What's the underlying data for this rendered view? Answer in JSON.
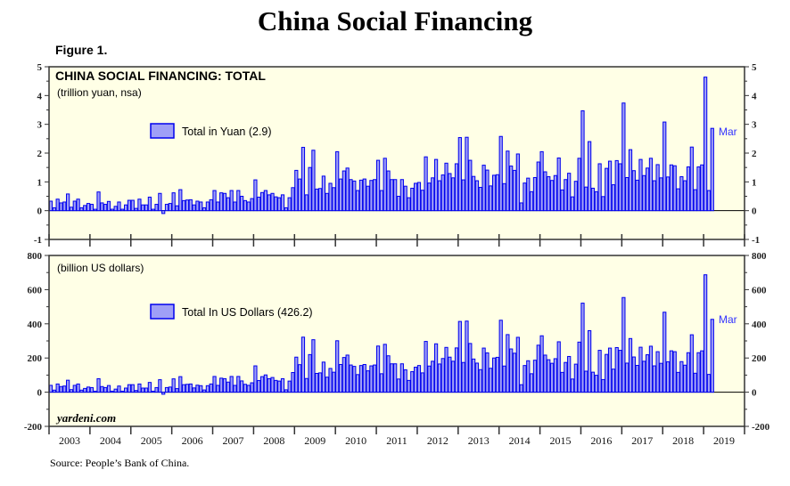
{
  "title": "China Social Financing",
  "figure_label": "Figure 1.",
  "source": "Source: People’s Bank of China.",
  "watermark": "yardeni.com",
  "colors": {
    "bar_fill": "#9f9ff7",
    "bar_stroke": "#0000ee",
    "panel_bg": "#ffffe6",
    "label": "#3333ff"
  },
  "chart_data": [
    {
      "type": "bar",
      "title": "CHINA SOCIAL FINANCING: TOTAL",
      "subtitle": "(trillion yuan, nsa)",
      "legend": "Total in Yuan (2.9)",
      "end_label": "Mar",
      "ylim": [
        -1,
        5
      ],
      "yticks": [
        -1,
        0,
        1,
        2,
        3,
        4,
        5
      ],
      "x_start": "2003-01",
      "frequency": "monthly",
      "values": [
        0.33,
        0.1,
        0.4,
        0.27,
        0.3,
        0.58,
        0.12,
        0.33,
        0.4,
        0.1,
        0.18,
        0.25,
        0.22,
        0.05,
        0.65,
        0.27,
        0.22,
        0.32,
        0.05,
        0.15,
        0.3,
        0.05,
        0.2,
        0.36,
        0.36,
        0.08,
        0.4,
        0.2,
        0.2,
        0.47,
        0.05,
        0.22,
        0.6,
        -0.1,
        0.22,
        0.25,
        0.62,
        0.17,
        0.73,
        0.35,
        0.37,
        0.38,
        0.2,
        0.33,
        0.3,
        0.1,
        0.3,
        0.38,
        0.7,
        0.3,
        0.62,
        0.6,
        0.45,
        0.7,
        0.3,
        0.7,
        0.5,
        0.35,
        0.3,
        0.42,
        1.07,
        0.47,
        0.63,
        0.7,
        0.55,
        0.6,
        0.48,
        0.45,
        0.55,
        0.1,
        0.45,
        0.8,
        1.4,
        1.1,
        2.2,
        0.55,
        1.5,
        2.1,
        0.75,
        0.77,
        1.2,
        0.6,
        0.95,
        0.8,
        2.05,
        1.1,
        1.38,
        1.48,
        1.08,
        1.03,
        0.7,
        1.06,
        1.1,
        0.85,
        1.05,
        1.08,
        1.75,
        0.7,
        1.82,
        1.38,
        1.08,
        1.08,
        0.5,
        1.08,
        0.85,
        0.45,
        0.78,
        0.95,
        0.98,
        0.71,
        1.87,
        0.96,
        1.14,
        1.78,
        1.04,
        1.24,
        1.65,
        1.29,
        1.14,
        1.63,
        2.54,
        1.07,
        2.55,
        1.75,
        1.19,
        1.04,
        0.81,
        1.58,
        1.41,
        0.86,
        1.23,
        1.25,
        2.58,
        0.94,
        2.07,
        1.55,
        1.4,
        1.97,
        0.27,
        0.96,
        1.13,
        0.66,
        1.15,
        1.69,
        2.05,
        1.35,
        1.18,
        1.05,
        1.22,
        1.83,
        0.72,
        1.08,
        1.3,
        0.48,
        1.02,
        1.82,
        3.47,
        0.82,
        2.4,
        0.78,
        0.66,
        1.63,
        0.49,
        1.47,
        1.72,
        0.9,
        1.74,
        1.63,
        3.74,
        1.15,
        2.12,
        1.39,
        1.06,
        1.78,
        1.22,
        1.48,
        1.82,
        1.04,
        1.6,
        1.14,
        3.08,
        1.17,
        1.59,
        1.56,
        0.76,
        1.18,
        1.04,
        1.52,
        2.21,
        0.73,
        1.52,
        1.59,
        4.64,
        0.7,
        2.86
      ]
    },
    {
      "type": "bar",
      "subtitle": "(billion US dollars)",
      "legend": "Total In US Dollars (426.2)",
      "end_label": "Mar",
      "ylim": [
        -200,
        800
      ],
      "yticks": [
        -200,
        0,
        200,
        400,
        600,
        800
      ],
      "x_start": "2003-01",
      "frequency": "monthly",
      "xticks": [
        "2003",
        "2004",
        "2005",
        "2006",
        "2007",
        "2008",
        "2009",
        "2010",
        "2011",
        "2012",
        "2013",
        "2014",
        "2015",
        "2016",
        "2017",
        "2018",
        "2019"
      ],
      "values": [
        40,
        12,
        48,
        33,
        36,
        70,
        15,
        40,
        48,
        12,
        22,
        30,
        27,
        6,
        79,
        33,
        27,
        39,
        6,
        18,
        36,
        6,
        24,
        44,
        44,
        10,
        48,
        24,
        24,
        57,
        6,
        27,
        73,
        -12,
        27,
        30,
        78,
        21,
        91,
        44,
        46,
        48,
        25,
        41,
        38,
        13,
        38,
        48,
        92,
        40,
        82,
        79,
        59,
        92,
        40,
        92,
        66,
        46,
        40,
        55,
        154,
        68,
        91,
        101,
        79,
        86,
        69,
        65,
        79,
        14,
        65,
        115,
        205,
        161,
        322,
        80,
        220,
        307,
        110,
        113,
        176,
        88,
        139,
        117,
        301,
        162,
        203,
        217,
        159,
        151,
        103,
        156,
        162,
        125,
        154,
        159,
        270,
        108,
        280,
        213,
        166,
        166,
        77,
        166,
        131,
        69,
        120,
        146,
        156,
        113,
        297,
        153,
        181,
        283,
        165,
        197,
        262,
        205,
        181,
        259,
        414,
        174,
        416,
        285,
        194,
        170,
        132,
        258,
        230,
        140,
        200,
        204,
        421,
        153,
        337,
        253,
        228,
        321,
        44,
        156,
        184,
        108,
        187,
        275,
        330,
        217,
        190,
        169,
        196,
        295,
        116,
        174,
        209,
        77,
        164,
        293,
        521,
        123,
        360,
        117,
        99,
        245,
        74,
        221,
        258,
        135,
        261,
        245,
        554,
        170,
        314,
        206,
        157,
        263,
        181,
        219,
        269,
        154,
        237,
        169,
        468,
        178,
        242,
        237,
        116,
        179,
        158,
        231,
        336,
        111,
        231,
        242,
        687,
        104,
        426.2
      ]
    }
  ]
}
